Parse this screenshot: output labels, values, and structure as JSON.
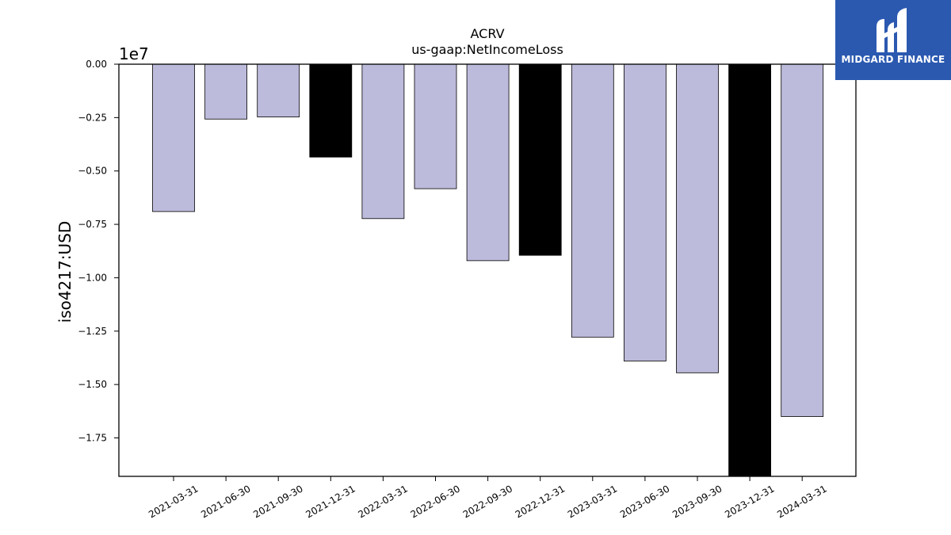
{
  "logo": {
    "text": "MIDGARD FINANCE"
  },
  "chart_data": {
    "type": "bar",
    "title": "ACRV",
    "subtitle": "us-gaap:NetIncomeLoss",
    "ylabel": "iso4217:USD",
    "xlabel": "",
    "y_offset_label": "1e7",
    "categories": [
      "2021-03-31",
      "2021-06-30",
      "2021-09-30",
      "2021-12-31",
      "2022-03-31",
      "2022-06-30",
      "2022-09-30",
      "2022-12-31",
      "2023-03-31",
      "2023-06-30",
      "2023-09-30",
      "2023-12-31",
      "2024-03-31"
    ],
    "values": [
      -6900000,
      -2570000,
      -2470000,
      -4350000,
      -7230000,
      -5830000,
      -9200000,
      -8950000,
      -12780000,
      -13900000,
      -14450000,
      -19300000,
      -16500000
    ],
    "highlight": [
      false,
      false,
      false,
      true,
      false,
      false,
      false,
      true,
      false,
      false,
      false,
      true,
      false
    ],
    "ylim": [
      -19300000,
      0
    ],
    "yticks": [
      0,
      -2500000,
      -5000000,
      -7500000,
      -10000000,
      -12500000,
      -15000000,
      -17500000
    ],
    "ytick_labels": [
      "0.00",
      "−0.25",
      "−0.50",
      "−0.75",
      "−1.00",
      "−1.25",
      "−1.50",
      "−1.75"
    ],
    "colors": {
      "bar": "#bdbbdb",
      "highlight_bar": "#000000",
      "edge": "#000000"
    },
    "grid": false,
    "legend": "none"
  }
}
